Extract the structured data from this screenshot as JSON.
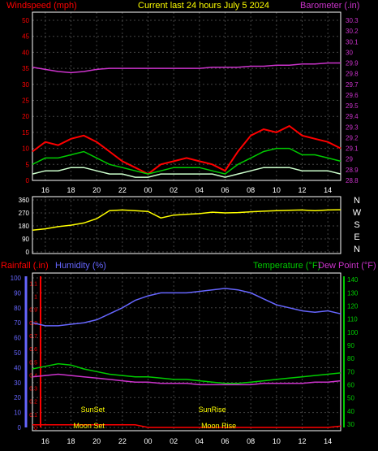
{
  "title": "Current last 24 hours July 5 2024",
  "colors": {
    "windspeed": "#ff0000",
    "gust": "#ff0000",
    "windavg": "#00cc00",
    "windlow": "#ccffcc",
    "barometer": "#cc33cc",
    "direction": "#ffff00",
    "rainfall": "#ff0000",
    "humidity": "#6666ff",
    "temperature": "#00cc00",
    "dewpoint": "#cc33cc",
    "title": "#ffff00",
    "grid": "#444444"
  },
  "x_ticks": [
    "16",
    "18",
    "20",
    "22",
    "00",
    "02",
    "04",
    "06",
    "08",
    "10",
    "12",
    "14"
  ],
  "chart_data": [
    {
      "type": "line",
      "id": "wind-barometer",
      "left_label": "Windspeed (mph)",
      "right_label": "Barometer (.in)",
      "left_ticks": [
        "0",
        "5",
        "10",
        "15",
        "20",
        "25",
        "30",
        "35",
        "40",
        "45",
        "50"
      ],
      "right_ticks": [
        "28.8",
        "28.9",
        "29",
        "29.1",
        "29.2",
        "29.3",
        "29.4",
        "29.5",
        "29.6",
        "29.7",
        "29.8",
        "29.9",
        "30",
        "30.1",
        "30.2",
        "30.3"
      ],
      "ylim_left": [
        0,
        50
      ],
      "ylim_right": [
        28.8,
        30.3
      ],
      "x_hours": [
        0,
        1,
        2,
        3,
        4,
        5,
        6,
        7,
        8,
        9,
        10,
        11,
        12,
        13,
        14,
        15,
        16,
        17,
        18,
        19,
        20,
        21,
        22,
        23,
        24
      ],
      "series": [
        {
          "key": "gust",
          "values": [
            9,
            12,
            11,
            13,
            14,
            12,
            9,
            6,
            4,
            2,
            5,
            6,
            7,
            6,
            5,
            3,
            9,
            14,
            16,
            15,
            17,
            14,
            13,
            12,
            10
          ]
        },
        {
          "key": "windavg",
          "values": [
            5,
            7,
            7,
            8,
            9,
            7,
            5,
            4,
            3,
            2,
            3,
            4,
            4,
            4,
            3,
            2,
            5,
            7,
            9,
            10,
            10,
            8,
            8,
            7,
            6
          ]
        },
        {
          "key": "windlow",
          "values": [
            2,
            3,
            3,
            4,
            4,
            3,
            2,
            2,
            1,
            1,
            2,
            2,
            2,
            2,
            2,
            1,
            2,
            3,
            4,
            4,
            4,
            3,
            3,
            3,
            2
          ]
        },
        {
          "key": "barometer",
          "values": [
            29.86,
            29.84,
            29.82,
            29.81,
            29.82,
            29.84,
            29.85,
            29.85,
            29.85,
            29.85,
            29.85,
            29.85,
            29.85,
            29.85,
            29.86,
            29.86,
            29.86,
            29.87,
            29.87,
            29.88,
            29.88,
            29.89,
            29.89,
            29.9,
            29.9
          ]
        }
      ]
    },
    {
      "type": "line",
      "id": "wind-direction",
      "left_ticks": [
        "0",
        "90",
        "180",
        "270",
        "360"
      ],
      "ylim": [
        0,
        360
      ],
      "right_labels": [
        "N",
        "W",
        "S",
        "E",
        "N"
      ],
      "x_hours": [
        0,
        1,
        2,
        3,
        4,
        5,
        6,
        7,
        8,
        9,
        10,
        11,
        12,
        13,
        14,
        15,
        16,
        17,
        18,
        19,
        20,
        21,
        22,
        23,
        24
      ],
      "series": [
        {
          "key": "direction",
          "values": [
            150,
            160,
            175,
            185,
            200,
            230,
            285,
            290,
            285,
            280,
            235,
            255,
            260,
            265,
            275,
            270,
            272,
            278,
            282,
            285,
            288,
            290,
            285,
            290,
            292
          ]
        }
      ]
    },
    {
      "type": "line",
      "id": "temp-humidity-rain",
      "left_label_rain": "Rainfall (.in)",
      "left_label_humidity": "Humidity (%)",
      "right_label_temp": "Temperature (°F)",
      "right_label_dew": "Dew Point (°F)",
      "rain_ticks": [
        "0",
        "0.1",
        "0.2",
        "0.3",
        "0.4",
        "0.5",
        "0.6",
        "0.7",
        "0.8",
        "0.9",
        "1",
        "1.1"
      ],
      "humidity_ticks": [
        "0",
        "10",
        "20",
        "30",
        "40",
        "50",
        "60",
        "70",
        "80",
        "90",
        "100"
      ],
      "temp_ticks": [
        "30",
        "40",
        "50",
        "60",
        "70",
        "80",
        "90",
        "100",
        "110",
        "120",
        "130",
        "140"
      ],
      "ylim_humidity": [
        0,
        100
      ],
      "ylim_temp": [
        25,
        145
      ],
      "x_hours": [
        0,
        1,
        2,
        3,
        4,
        5,
        6,
        7,
        8,
        9,
        10,
        11,
        12,
        13,
        14,
        15,
        16,
        17,
        18,
        19,
        20,
        21,
        22,
        23,
        24
      ],
      "series": [
        {
          "key": "humidity",
          "values": [
            70,
            68,
            68,
            69,
            70,
            72,
            76,
            80,
            85,
            88,
            90,
            90,
            90,
            91,
            92,
            93,
            92,
            90,
            86,
            82,
            80,
            78,
            77,
            78,
            76
          ]
        },
        {
          "key": "temperature",
          "values": [
            72,
            74,
            76,
            75,
            72,
            70,
            68,
            67,
            66,
            66,
            65,
            64,
            64,
            63,
            62,
            61,
            61,
            62,
            63,
            64,
            65,
            66,
            67,
            68,
            69
          ]
        },
        {
          "key": "dewpoint",
          "values": [
            66,
            67,
            68,
            67,
            66,
            65,
            64,
            63,
            62,
            62,
            61,
            61,
            61,
            60,
            60,
            60,
            60,
            60,
            61,
            61,
            61,
            61,
            62,
            62,
            63
          ]
        },
        {
          "key": "rainfall",
          "values": [
            0.02,
            0.02,
            0.02,
            0.02,
            0.02,
            0.02,
            0.02,
            0.02,
            0.02,
            0,
            0,
            0,
            0,
            0,
            0,
            0,
            0,
            0,
            0,
            0,
            0,
            0,
            0,
            0,
            0.01
          ]
        }
      ],
      "annotations": [
        {
          "label": "SunSet",
          "hour": 4.7
        },
        {
          "label": "SunRise",
          "hour": 14.0
        },
        {
          "label": "Moon Set",
          "hour": 4.4
        },
        {
          "label": "Moon Rise",
          "hour": 14.5
        }
      ]
    }
  ],
  "compass": [
    "N",
    "W",
    "S",
    "E",
    "N"
  ]
}
